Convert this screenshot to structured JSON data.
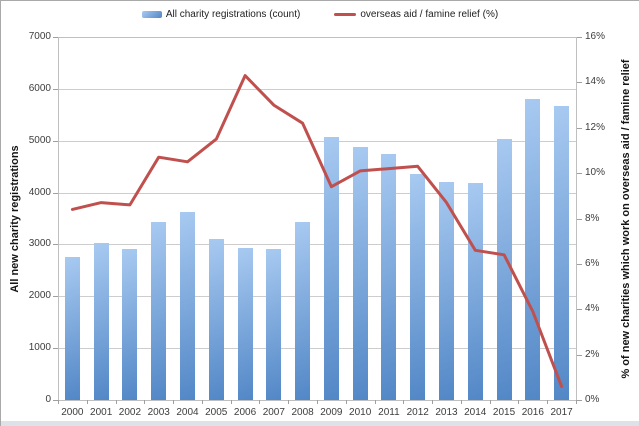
{
  "chart": {
    "legend": [
      {
        "label": "All charity registrations (count)",
        "marker": "bar-swatch-icon"
      },
      {
        "label": "overseas aid / famine relief (%)",
        "marker": "line-swatch-icon"
      }
    ],
    "left_axis_title": "All new charity registrations",
    "right_axis_title": "% of new charities which work on overseas aid / famine relief"
  },
  "chart_data": {
    "type": "combo",
    "categories": [
      "2000",
      "2001",
      "2002",
      "2003",
      "2004",
      "2005",
      "2006",
      "2007",
      "2008",
      "2009",
      "2010",
      "2011",
      "2012",
      "2013",
      "2014",
      "2015",
      "2016",
      "2017"
    ],
    "series": [
      {
        "name": "All charity registrations (count)",
        "type": "bar",
        "axis": "left",
        "values": [
          2750,
          3030,
          2910,
          3440,
          3630,
          3100,
          2940,
          2910,
          3440,
          5080,
          4880,
          4740,
          4360,
          4210,
          4190,
          5040,
          5800,
          5670
        ]
      },
      {
        "name": "overseas aid / famine relief (%)",
        "type": "line",
        "axis": "right",
        "values": [
          8.4,
          8.7,
          8.6,
          10.7,
          10.5,
          11.5,
          14.3,
          13.0,
          12.2,
          9.4,
          10.1,
          10.2,
          10.3,
          8.7,
          6.6,
          6.4,
          3.9,
          0.6
        ]
      }
    ],
    "left_axis": {
      "min": 0,
      "max": 7000,
      "step": 1000,
      "tick_labels": [
        "0",
        "1000",
        "2000",
        "3000",
        "4000",
        "5000",
        "6000",
        "7000"
      ]
    },
    "right_axis": {
      "min": 0,
      "max": 16,
      "step": 2,
      "tick_labels": [
        "0%",
        "2%",
        "4%",
        "6%",
        "8%",
        "10%",
        "12%",
        "14%",
        "16%"
      ]
    },
    "grid": true,
    "legend_position": "top",
    "title": "",
    "xlabel": "",
    "colors": {
      "bar_light": "#a8caf1",
      "bar_dark": "#5287c6",
      "line": "#c0504d",
      "grid": "#cdcdcd",
      "axis": "#bfbfbf",
      "tick_text": "#3d3d3d"
    }
  }
}
